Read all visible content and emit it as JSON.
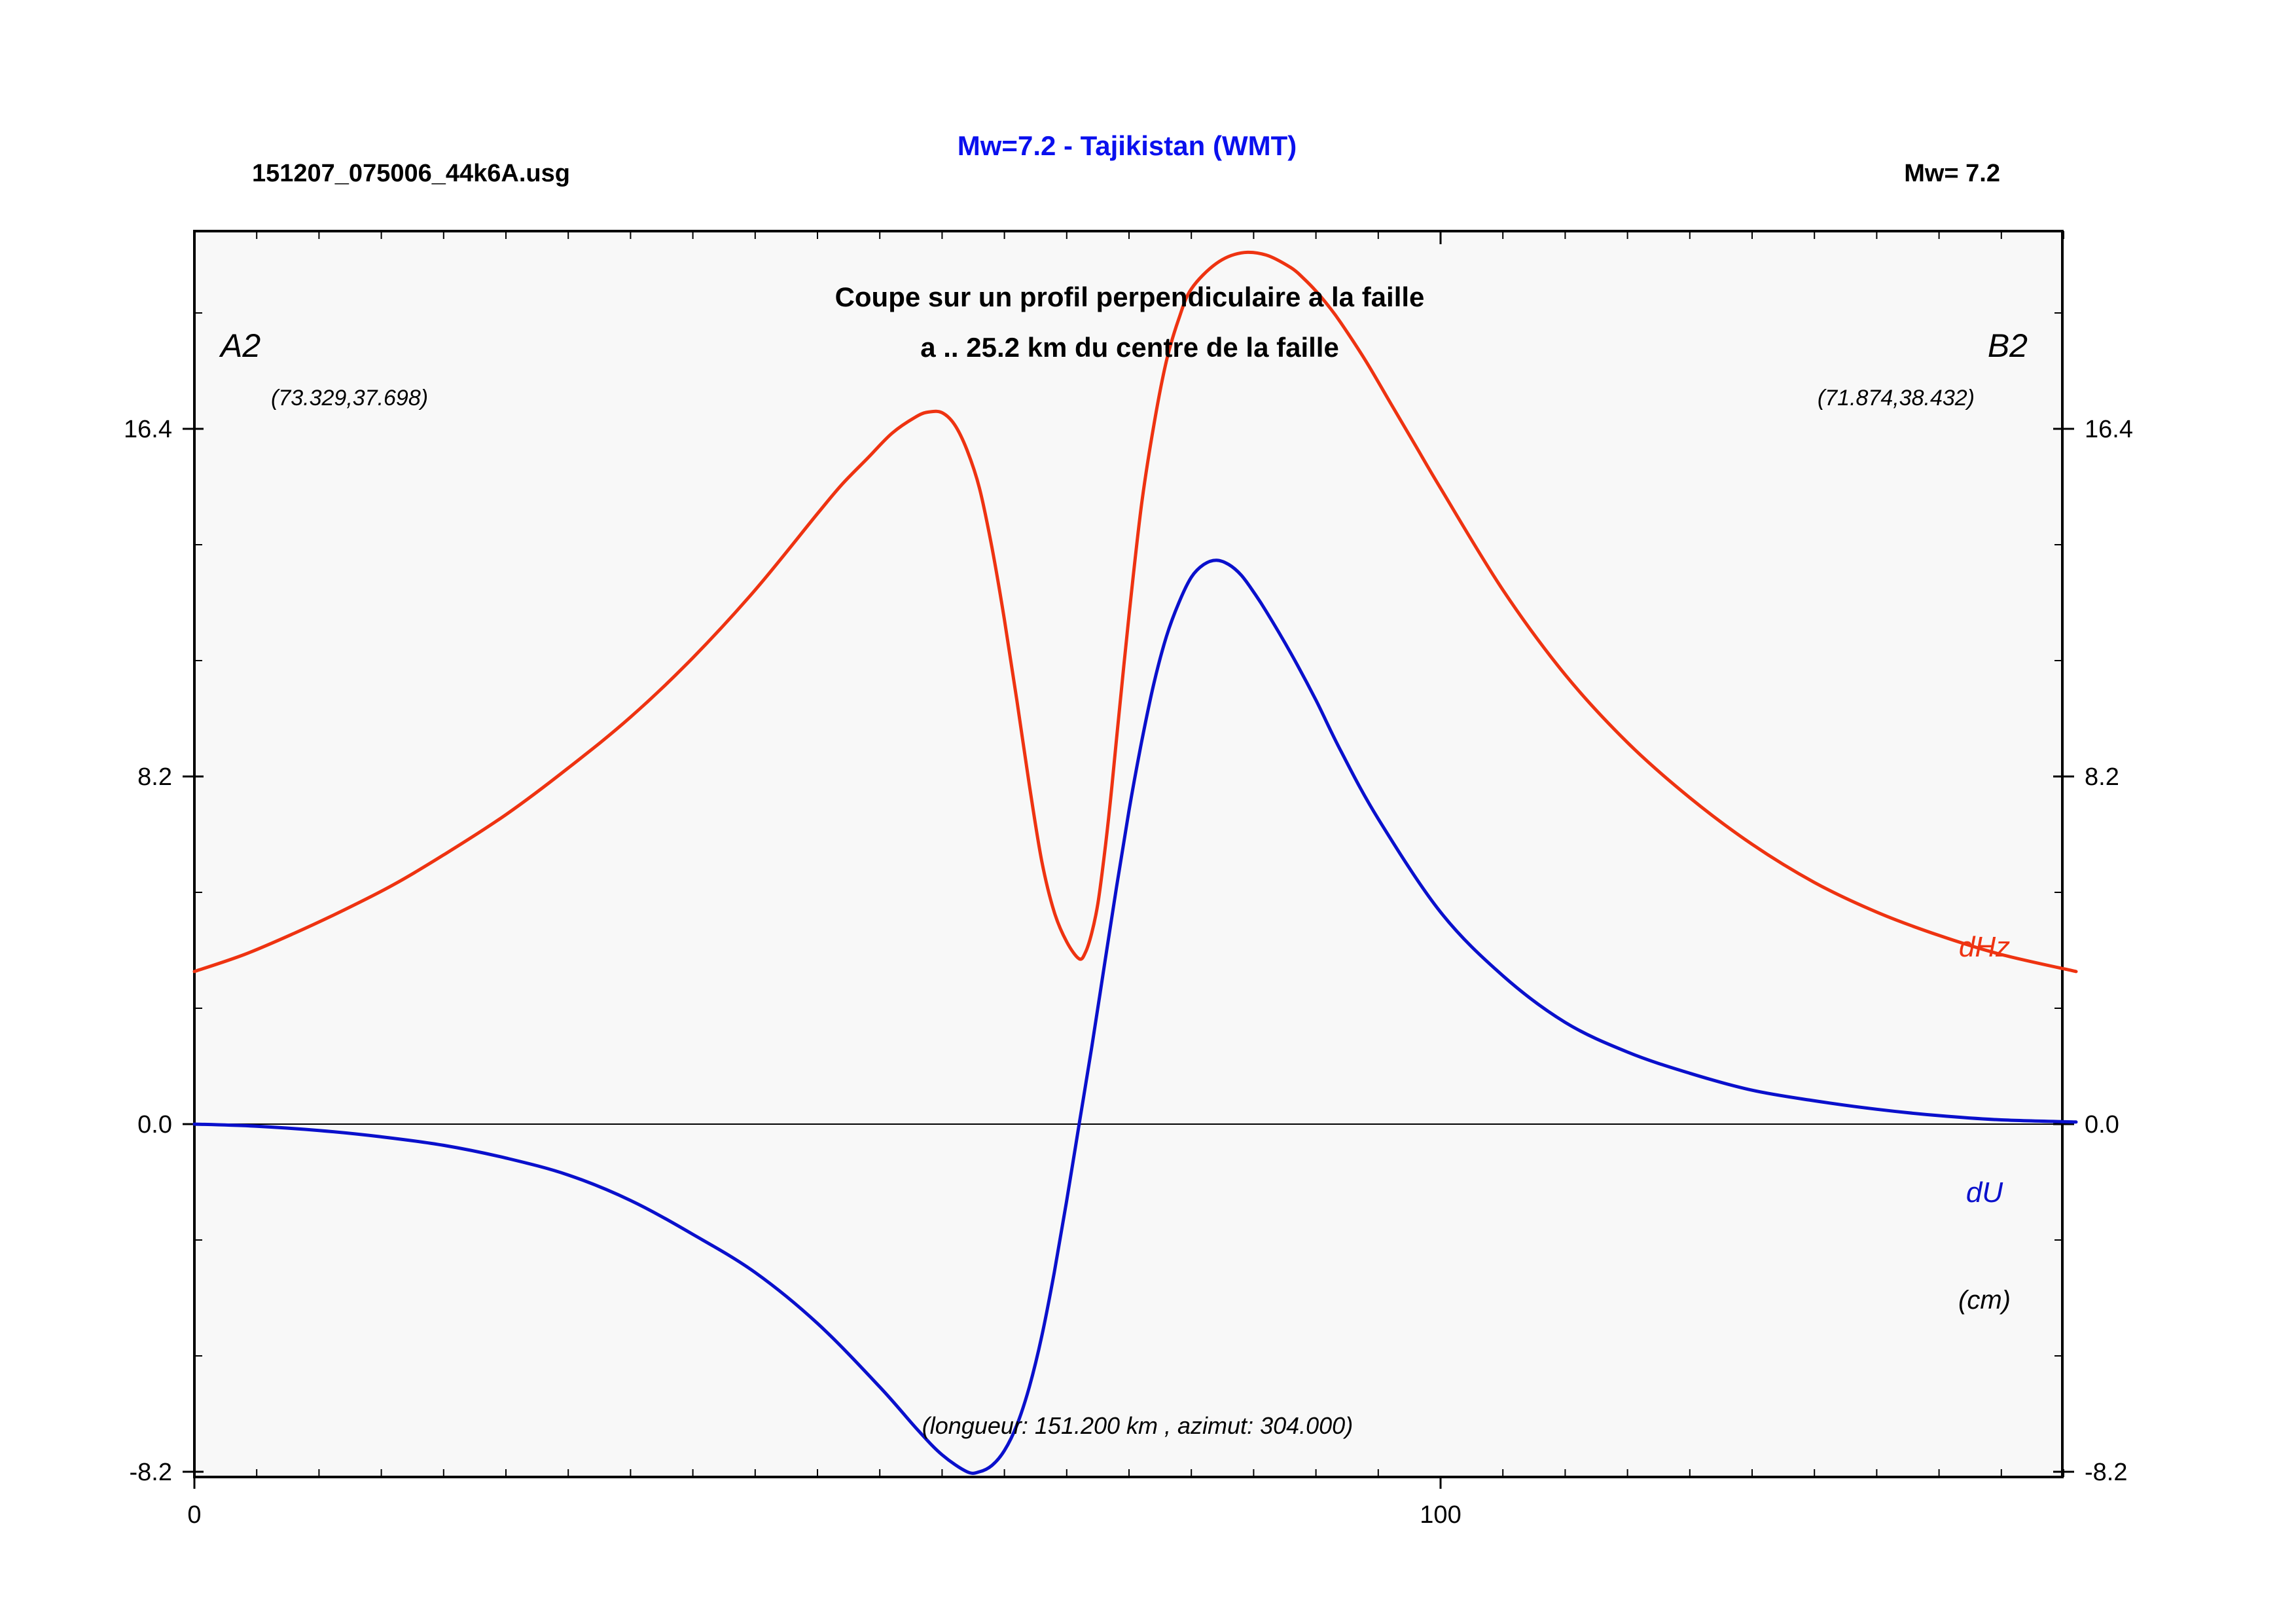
{
  "header": {
    "file_name": "151207_075006_44k6A.usg",
    "title": "Mw=7.2 - Tajikistan (WMT)",
    "magnitude": "Mw= 7.2"
  },
  "chart_data": {
    "type": "line",
    "subtitle_line1": "Coupe sur un profil perpendiculaire a la faille",
    "subtitle_line2": "a .. 25.2 km du centre de la faille",
    "profile_start": {
      "label": "A2",
      "coords": "(73.329,37.698)"
    },
    "profile_end": {
      "label": "B2",
      "coords": "(71.874,38.432)"
    },
    "length_note": "(longueur: 151.200 km , azimut: 304.000)",
    "unit_label": "(cm)",
    "xlim": [
      0,
      151.2
    ],
    "ylim": [
      -8.2,
      20.5
    ],
    "x_ticks": [
      0,
      100
    ],
    "y_ticks": [
      -8.2,
      0.0,
      8.2,
      16.4
    ],
    "y_tick_labels": [
      "-8.2",
      "0.0",
      "8.2",
      "16.4"
    ],
    "x_tick_labels": [
      "0",
      "100"
    ],
    "grid": false,
    "colors": {
      "dHz": "#ee3311",
      "dU": "#0a10cc",
      "title": "#0a10ee",
      "plot_bg": "#f8f8f8",
      "frame": "#000000"
    },
    "series": [
      {
        "name": "dHz",
        "x": [
          0,
          4,
          8,
          12,
          16,
          20,
          25,
          30,
          35,
          40,
          45,
          50,
          52,
          54,
          56,
          58,
          59,
          60,
          61,
          62,
          63,
          64,
          65,
          66,
          67,
          68,
          69,
          70,
          71,
          71.5,
          72,
          72.5,
          73,
          73.5,
          74,
          75,
          76,
          77,
          78,
          79,
          80,
          82,
          84,
          86,
          88,
          89,
          90,
          91,
          92,
          94,
          96,
          98,
          100,
          105,
          110,
          115,
          120,
          125,
          130,
          135,
          140,
          145,
          151
        ],
        "y": [
          3.6,
          4.0,
          4.5,
          5.05,
          5.65,
          6.35,
          7.3,
          8.4,
          9.6,
          11.0,
          12.6,
          14.4,
          15.1,
          15.7,
          16.3,
          16.7,
          16.8,
          16.78,
          16.5,
          15.9,
          15.0,
          13.6,
          11.9,
          10.0,
          8.0,
          6.2,
          5.0,
          4.3,
          3.9,
          4.05,
          4.5,
          5.2,
          6.3,
          7.6,
          9.1,
          12.0,
          14.6,
          16.5,
          18.0,
          19.0,
          19.7,
          20.3,
          20.55,
          20.5,
          20.2,
          19.95,
          19.65,
          19.3,
          18.9,
          18.0,
          17.0,
          16.0,
          15.0,
          12.6,
          10.6,
          9.0,
          7.7,
          6.6,
          5.7,
          5.0,
          4.45,
          4.0,
          3.6
        ]
      },
      {
        "name": "dU",
        "x": [
          0,
          5,
          10,
          15,
          20,
          25,
          30,
          35,
          40,
          45,
          50,
          55,
          58,
          60,
          62,
          63,
          64,
          65,
          66,
          67,
          68,
          69,
          70,
          71,
          72,
          73,
          74,
          75,
          76,
          77,
          78,
          79,
          80,
          81,
          82,
          83,
          84,
          85,
          86,
          88,
          90,
          92,
          95,
          100,
          105,
          110,
          115,
          120,
          125,
          130,
          135,
          140,
          145,
          151
        ],
        "y": [
          0.0,
          -0.05,
          -0.15,
          -0.3,
          -0.5,
          -0.8,
          -1.2,
          -1.8,
          -2.6,
          -3.5,
          -4.7,
          -6.2,
          -7.2,
          -7.8,
          -8.2,
          -8.2,
          -8.05,
          -7.7,
          -7.1,
          -6.2,
          -5.0,
          -3.5,
          -1.8,
          0.0,
          1.8,
          3.7,
          5.6,
          7.4,
          9.0,
          10.4,
          11.5,
          12.3,
          12.9,
          13.2,
          13.3,
          13.2,
          12.95,
          12.55,
          12.1,
          11.1,
          10.0,
          8.8,
          7.2,
          5.0,
          3.5,
          2.4,
          1.7,
          1.2,
          0.8,
          0.55,
          0.35,
          0.2,
          0.1,
          0.05
        ]
      }
    ]
  }
}
